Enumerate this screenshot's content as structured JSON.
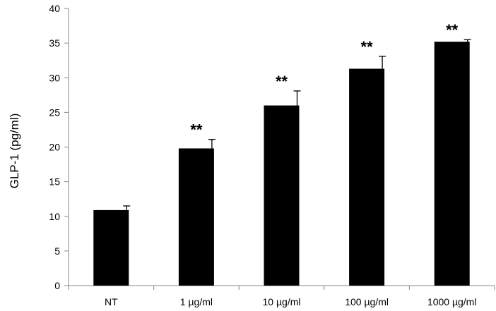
{
  "chart_data": {
    "type": "bar",
    "categories": [
      "NT",
      "1 µg/ml",
      "10 µg/ml",
      "100 µg/ml",
      "1000 µg/ml"
    ],
    "values": [
      10.9,
      19.8,
      26.0,
      31.3,
      35.2
    ],
    "errors": [
      0.6,
      1.3,
      2.1,
      1.8,
      0.3
    ],
    "annotations": [
      "",
      "**",
      "**",
      "**",
      "**"
    ],
    "title": "",
    "xlabel": "",
    "ylabel": "GLP-1 (pg/ml)",
    "ylim": [
      0,
      40
    ],
    "yticks": [
      0,
      5,
      10,
      15,
      20,
      25,
      30,
      35,
      40
    ],
    "grid": false,
    "bar_color": "#000000"
  }
}
